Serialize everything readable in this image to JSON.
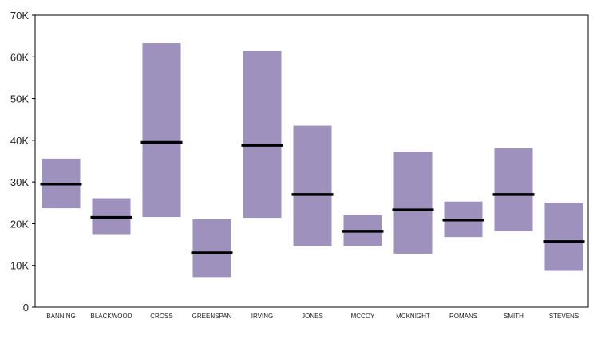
{
  "chart_data": {
    "type": "bar",
    "subtype": "floating-range-with-median",
    "title": "",
    "xlabel": "",
    "ylabel": "",
    "ylim": [
      0,
      70000
    ],
    "yticks": [
      0,
      10000,
      20000,
      30000,
      40000,
      50000,
      60000,
      70000
    ],
    "ytick_labels": [
      "0",
      "10K",
      "20K",
      "30K",
      "40K",
      "50K",
      "60K",
      "70K"
    ],
    "grid": false,
    "legend": "none",
    "categories": [
      "BANNING",
      "BLACKWOOD",
      "CROSS",
      "GREENSPAN",
      "IRVING",
      "JONES",
      "MCCOY",
      "MCKNIGHT",
      "ROMANS",
      "SMITH",
      "STEVENS"
    ],
    "low": [
      23700,
      17500,
      21600,
      7200,
      21400,
      14700,
      14700,
      12800,
      16800,
      18200,
      8700
    ],
    "high": [
      35600,
      26100,
      63300,
      21100,
      61400,
      43500,
      22100,
      37200,
      25300,
      38100,
      25000
    ],
    "median": [
      29500,
      21500,
      39500,
      13000,
      38800,
      27000,
      18200,
      23300,
      20900,
      27000,
      15700
    ],
    "colors": {
      "range": "#9e91bd",
      "median": "#000000",
      "axis": "#000000"
    }
  }
}
